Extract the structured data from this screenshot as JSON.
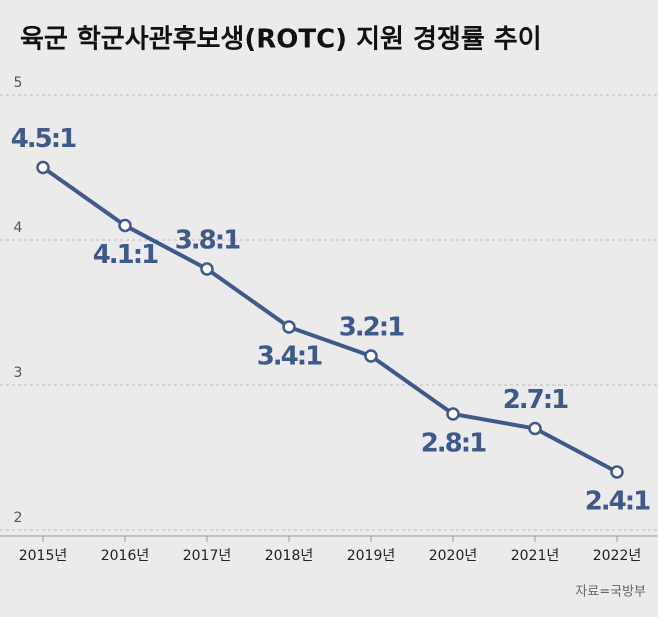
{
  "chart_data": {
    "type": "line",
    "title": "육군 학군사관후보생(ROTC) 지원 경쟁률 추이",
    "categories": [
      "2015년",
      "2016년",
      "2017년",
      "2018년",
      "2019년",
      "2020년",
      "2021년",
      "2022년"
    ],
    "series": [
      {
        "name": "지원 경쟁률",
        "color": "#3d5a8a",
        "values": [
          4.5,
          4.1,
          3.8,
          3.4,
          3.2,
          2.8,
          2.7,
          2.4
        ],
        "value_labels": [
          "4.5:1",
          "4.1:1",
          "3.8:1",
          "3.4:1",
          "3.2:1",
          "2.8:1",
          "2.7:1",
          "2.4:1"
        ]
      }
    ],
    "ylim": [
      2,
      5
    ],
    "yticks": [
      2,
      3,
      4,
      5
    ],
    "grid": true,
    "source": "자료=국방부"
  }
}
